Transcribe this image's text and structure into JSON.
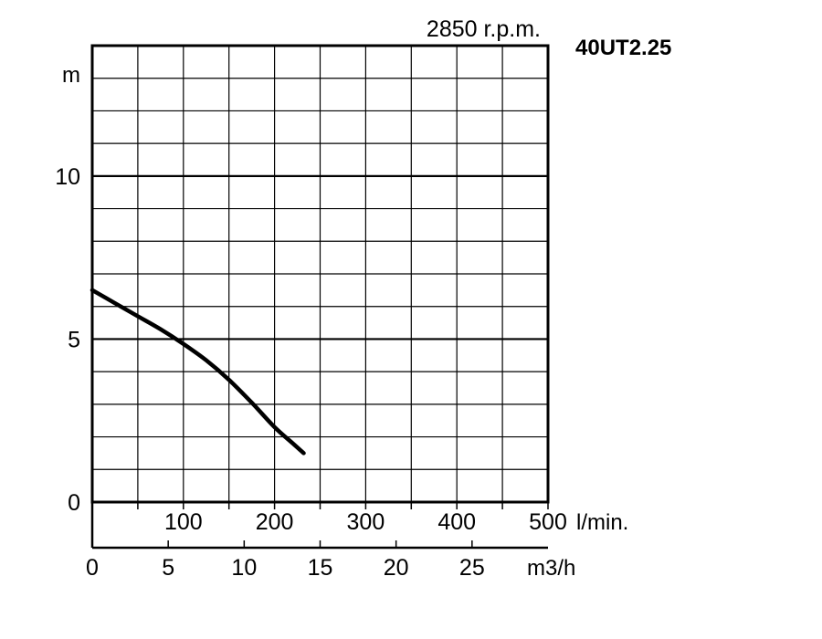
{
  "chart_data": {
    "type": "line",
    "model": "40UT2.25",
    "speed": "2850 r.p.m.",
    "ylabel": "m",
    "xlabel_primary": "l/min.",
    "xlabel_secondary": "m3/h",
    "ylim": [
      0,
      14
    ],
    "xlim": [
      0,
      500
    ],
    "grid": true,
    "y_ticks": [
      {
        "value": 0,
        "label": "0"
      },
      {
        "value": 5,
        "label": "5"
      },
      {
        "value": 10,
        "label": "10"
      }
    ],
    "x_ticks_primary": [
      {
        "value": 100,
        "label": "100"
      },
      {
        "value": 200,
        "label": "200"
      },
      {
        "value": 300,
        "label": "300"
      },
      {
        "value": 400,
        "label": "400"
      },
      {
        "value": 500,
        "label": "500"
      }
    ],
    "x_ticks_secondary": [
      {
        "value": 0,
        "label": "0"
      },
      {
        "value": 5,
        "label": "5"
      },
      {
        "value": 10,
        "label": "10"
      },
      {
        "value": 15,
        "label": "15"
      },
      {
        "value": 20,
        "label": "20"
      },
      {
        "value": 25,
        "label": "25"
      }
    ],
    "series": [
      {
        "x": [
          0,
          25,
          50,
          75,
          100,
          125,
          150,
          175,
          200,
          220,
          232
        ],
        "y": [
          6.5,
          6.1,
          5.7,
          5.3,
          4.85,
          4.35,
          3.75,
          3.05,
          2.3,
          1.8,
          1.5
        ]
      }
    ]
  }
}
